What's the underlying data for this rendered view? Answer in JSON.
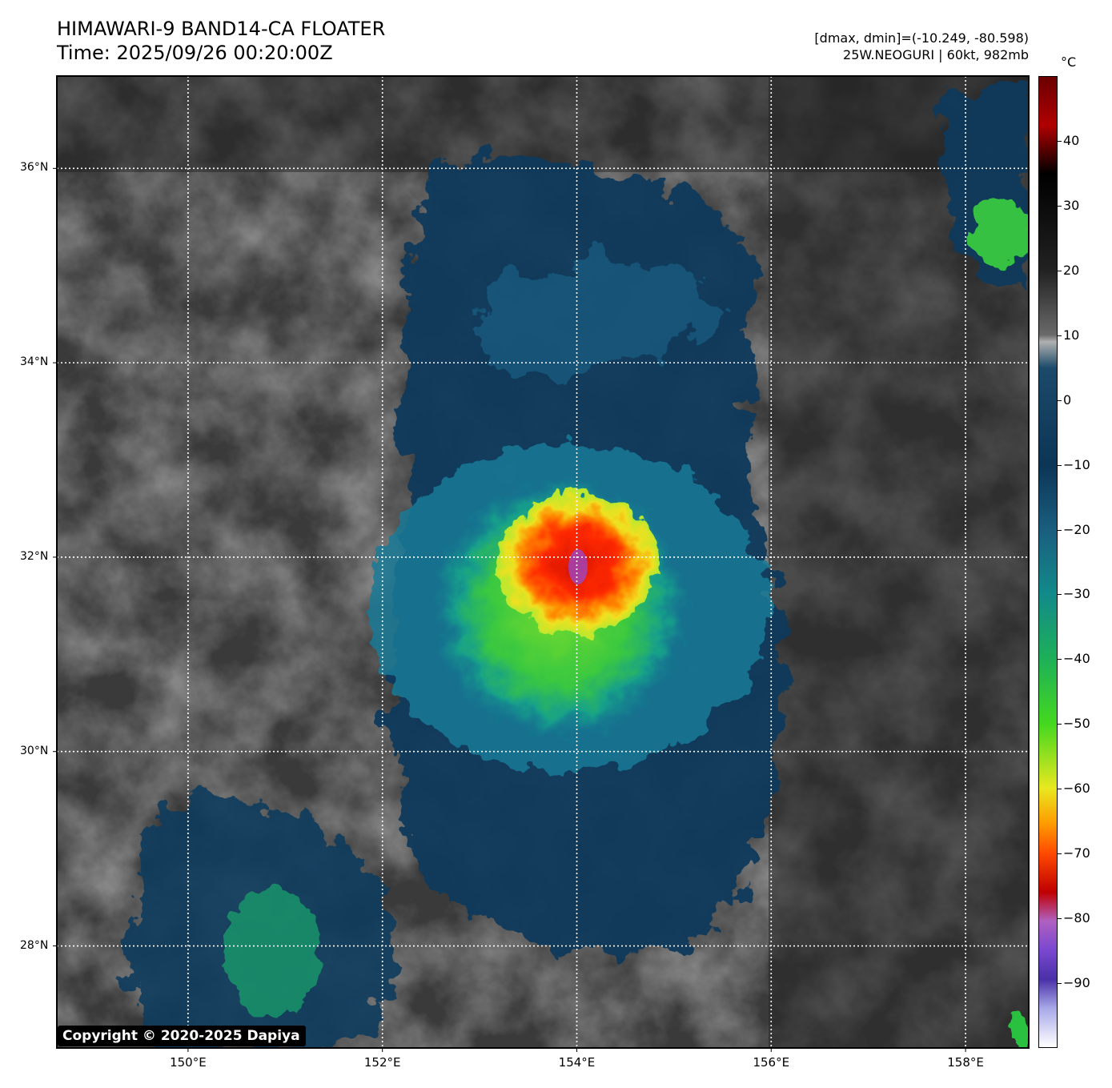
{
  "header": {
    "title": "HIMAWARI-9 BAND14-CA FLOATER",
    "time": "Time: 2025/09/26 00:20:00Z",
    "range": "[dmax, dmin]=(-10.249, -80.598)",
    "storm": "25W.NEOGURI | 60kt, 982mb"
  },
  "map": {
    "lat_labels": [
      "36°N",
      "34°N",
      "32°N",
      "30°N",
      "28°N"
    ],
    "lon_labels": [
      "150°E",
      "152°E",
      "154°E",
      "156°E",
      "158°E"
    ],
    "lon_range": [
      148.65,
      158.65
    ],
    "lat_range": [
      26.95,
      36.95
    ],
    "storm_center": {
      "lon": 154.0,
      "lat": 31.9
    },
    "grid_style": "dotted-white"
  },
  "colorbar": {
    "unit": "°C",
    "ticks": [
      "40",
      "30",
      "20",
      "10",
      "0",
      "−10",
      "−20",
      "−30",
      "−40",
      "−50",
      "−60",
      "−70",
      "−80",
      "−90"
    ],
    "tick_values": [
      40,
      30,
      20,
      10,
      0,
      -10,
      -20,
      -30,
      -40,
      -50,
      -60,
      -70,
      -80,
      -90
    ],
    "range": [
      -100,
      50
    ],
    "colors": {
      "dark_red": "#6b0000",
      "black": "#000000",
      "gray": "#8a8a8a",
      "navy": "#0c3556",
      "teal": "#128a8a",
      "green": "#44d81f",
      "yellow": "#e8e820",
      "orange": "#ff9a00",
      "red": "#e81800",
      "purple": "#8a50d8",
      "white": "#ffffff"
    }
  },
  "footer": {
    "copyright": "Copyright © 2020-2025 Dapiya"
  }
}
